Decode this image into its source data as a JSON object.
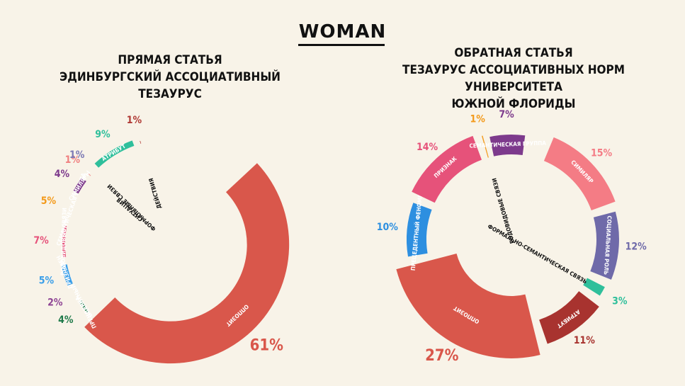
{
  "header": {
    "title": "WOMAN"
  },
  "left_panel": {
    "line1": "ПРЯМАЯ СТАТЬЯ",
    "line2": "ЭДИНБУРГСКИЙ АССОЦИАТИВНЫЙ ТЕЗАУРУС"
  },
  "right_panel": {
    "line1": "ОБРАТНАЯ СТАТЬЯ",
    "line2": "ТЕЗАУРУС  АССОЦИАТИВНЫХ НОРМ УНИВЕРСИТЕТА",
    "line3": "ЮЖНОЙ ФЛОРИДЫ"
  },
  "chart_data": [
    {
      "type": "pie",
      "style": "donut",
      "title": "ПРЯМАЯ СТАТЬЯ — ЭДИНБУРГСКИЙ АССОЦИАТИВНЫЙ ТЕЗАУРУС",
      "slices": [
        {
          "label": "ОППОЗИТ",
          "value": 61,
          "pct": "61%",
          "color": "#d9574b"
        },
        {
          "label": "ОЦЕНКА",
          "value": 4,
          "pct": "4%",
          "color": "#1f7a4a"
        },
        {
          "label": "ПРЕЦЕДЕНТНЫЙ ФЕНОМЕН",
          "value": 2,
          "pct": "2%",
          "color": "#8e4494"
        },
        {
          "label": "ПРИЗНАК",
          "value": 5,
          "pct": "5%",
          "color": "#3a9ee8"
        },
        {
          "label": "РОДОВИДОВЫЕ СВЯЗИ",
          "value": 7,
          "pct": "7%",
          "color": "#e6527a"
        },
        {
          "label": "СЕМАНТИЧЕСКАЯ ГРУППА",
          "value": 5,
          "pct": "5%",
          "color": "#f39a1b"
        },
        {
          "label": "СИМИЛЯРЫ",
          "value": 4,
          "pct": "4%",
          "color": "#7d3a8c"
        },
        {
          "label": "СИТУАЦИЯ",
          "value": 1,
          "pct": "1%",
          "color": "#f08080"
        },
        {
          "label": "ФОРМАЛЬНЫЕ СВЯЗИ",
          "value": 1,
          "pct": "1%",
          "color": "#7b79b5"
        },
        {
          "label": "АТРИБУТ",
          "value": 9,
          "pct": "9%",
          "color": "#2fbf9b"
        },
        {
          "label": "ДЕЙСТВИЯ",
          "value": 1,
          "pct": "1%",
          "color": "#b03a35"
        }
      ]
    },
    {
      "type": "pie",
      "style": "donut",
      "title": "ОБРАТНАЯ СТАТЬЯ — ТЕЗАУРУС АССОЦИАТИВНЫХ НОРМ УНИВЕРСИТЕТА ЮЖНОЙ ФЛОРИДЫ",
      "slices": [
        {
          "label": "СИМИЛЯР",
          "value": 15,
          "pct": "15%",
          "color": "#f47c85"
        },
        {
          "label": "СОЦИАЛЬНАЯ РОЛЬ",
          "value": 12,
          "pct": "12%",
          "color": "#6f6aa9"
        },
        {
          "label": "ФОРМАЛЬНО-СЕМАНТИЧЕСКАЯ СВЯЗЬ",
          "value": 3,
          "pct": "3%",
          "color": "#2fbf9b"
        },
        {
          "label": "АТРИБУТ",
          "value": 11,
          "pct": "11%",
          "color": "#a8332f"
        },
        {
          "label": "ОППОЗИТ",
          "value": 27,
          "pct": "27%",
          "color": "#d9574b"
        },
        {
          "label": "ПРЕЦЕДЕНТНЫЙ ФЕНОМЕН",
          "value": 10,
          "pct": "10%",
          "color": "#2d8fe0"
        },
        {
          "label": "ПРИЗНАК",
          "value": 14,
          "pct": "14%",
          "color": "#e6527a"
        },
        {
          "label": "РОДОВИДОВЫЕ СВЯЗИ",
          "value": 1,
          "pct": "1%",
          "color": "#f39a1b"
        },
        {
          "label": "СЕМАНТИЧЕСКАЯ ГРУППА",
          "value": 7,
          "pct": "7%",
          "color": "#7d3a8c"
        }
      ]
    }
  ]
}
